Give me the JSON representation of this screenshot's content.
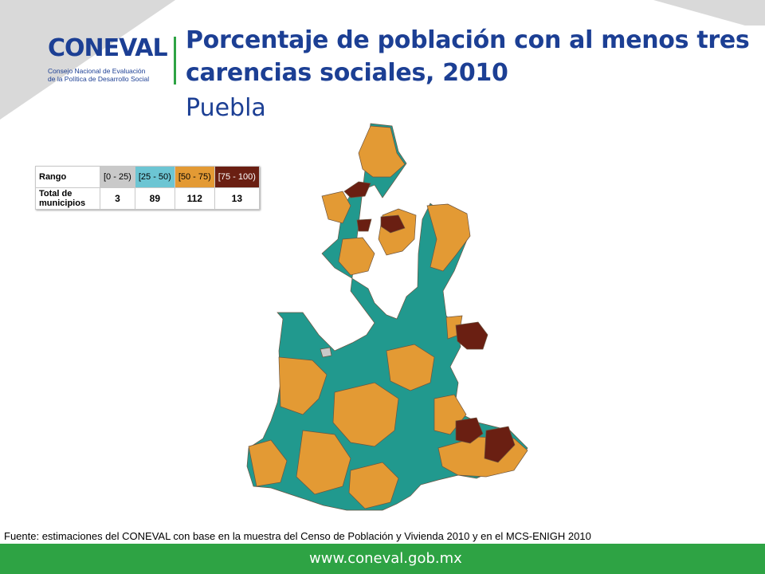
{
  "header": {
    "logo_text": "CONEVAL",
    "logo_sub_line1": "Consejo Nacional de Evaluación",
    "logo_sub_line2": "de la Política de Desarrollo Social",
    "title": "Porcentaje de población con al menos tres carencias sociales, 2010",
    "subtitle": "Puebla"
  },
  "legend": {
    "row1_label": "Rango",
    "row2_label": "Total de municipios",
    "ranges": [
      {
        "label": "[0 - 25)",
        "count": "3",
        "color": "#c9c9c9",
        "text_color": "#000000"
      },
      {
        "label": "[25 - 50)",
        "count": "89",
        "color": "#6cc5d3",
        "text_color": "#000000"
      },
      {
        "label": "[50 - 75)",
        "count": "112",
        "color": "#e39a34",
        "text_color": "#000000"
      },
      {
        "label": "[75 - 100)",
        "count": "13",
        "color": "#6a1f12",
        "text_color": "#ffffff"
      }
    ]
  },
  "map_colors": {
    "teal": "#21998e",
    "orange": "#e39a34",
    "dark_red": "#6a1f12",
    "gray": "#c9c9c9",
    "border": "#6b5440"
  },
  "source": "Fuente: estimaciones del CONEVAL con base en la muestra del Censo de Población y Vivienda 2010 y en el MCS-ENIGH 2010",
  "footer": {
    "url": "www.coneval.gob.mx",
    "color": "#2ea344"
  }
}
